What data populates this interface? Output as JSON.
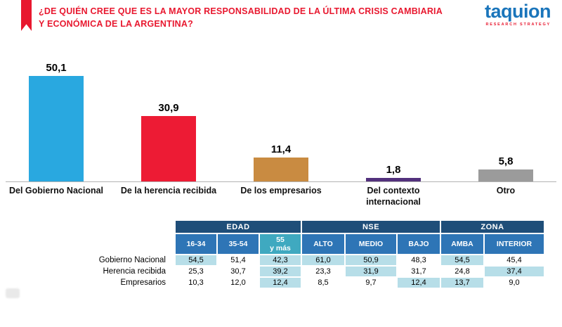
{
  "header": {
    "title": "¿DE QUIÉN CREE QUE ES LA MAYOR RESPONSABILIDAD DE LA ÚLTIMA CRISIS CAMBIARIA Y ECONÓMICA DE LA ARGENTINA?",
    "brand_name": "taquion",
    "brand_tagline": "RESEARCH STRATEGY"
  },
  "colors": {
    "title_red": "#e8182f",
    "brand_blue": "#1a75bb",
    "table_group_navy": "#1f4e79",
    "table_header_blue": "#2e75b6",
    "table_header_teal": "#3fa9c0",
    "table_highlight": "#b7dee8",
    "axis_gray": "#b3b3b3"
  },
  "chart_data": {
    "type": "bar",
    "title": "¿De quién cree que es la mayor responsabilidad de la última crisis cambiaria y económica de la Argentina?",
    "categories": [
      "Del Gobierno Nacional",
      "De la herencia recibida",
      "De los empresarios",
      "Del contexto internacional",
      "Otro"
    ],
    "values": [
      50.1,
      30.9,
      11.4,
      1.8,
      5.8
    ],
    "value_labels": [
      "50,1",
      "30,9",
      "11,4",
      "1,8",
      "5,8"
    ],
    "bar_colors": [
      "#29a8e0",
      "#ed1b34",
      "#c98b41",
      "#52307c",
      "#9b9b9b"
    ],
    "xlabel": "",
    "ylabel": "",
    "ylim": [
      0,
      58
    ],
    "grid": false,
    "legend": "none",
    "data_labels_position": "above bars",
    "crosstab": {
      "groups": [
        {
          "label": "EDAD",
          "span": 3
        },
        {
          "label": "NSE",
          "span": 3
        },
        {
          "label": "ZONA",
          "span": 2
        }
      ],
      "columns": [
        "16-34",
        "35-54",
        "55\ny más",
        "ALTO",
        "MEDIO",
        "BAJO",
        "AMBA",
        "INTERIOR"
      ],
      "accent_column_index": 2,
      "rows": [
        {
          "label": "Gobierno Nacional",
          "values": [
            "54,5",
            "51,4",
            "42,3",
            "61,0",
            "50,9",
            "48,3",
            "54,5",
            "45,4"
          ],
          "highlight": [
            true,
            false,
            true,
            true,
            true,
            false,
            true,
            false
          ]
        },
        {
          "label": "Herencia recibida",
          "values": [
            "25,3",
            "30,7",
            "39,2",
            "23,3",
            "31,9",
            "31,7",
            "24,8",
            "37,4"
          ],
          "highlight": [
            false,
            false,
            true,
            false,
            true,
            false,
            false,
            true
          ]
        },
        {
          "label": "Empresarios",
          "values": [
            "10,3",
            "12,0",
            "12,4",
            "8,5",
            "9,7",
            "12,4",
            "13,7",
            "9,0"
          ],
          "highlight": [
            false,
            false,
            true,
            false,
            false,
            true,
            true,
            false
          ]
        }
      ]
    }
  }
}
